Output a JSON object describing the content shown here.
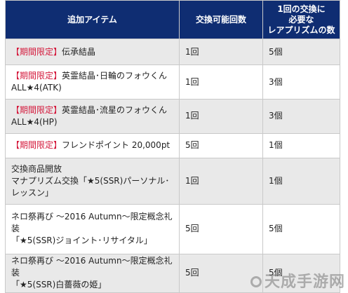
{
  "table": {
    "headers": [
      "追加アイテム",
      "交換可能回数",
      "1回の交換に\n必要な\nレアプリズムの数"
    ],
    "rows": [
      {
        "tag": "【期間限定】",
        "item": "伝承結晶",
        "times": "1回",
        "cost": "5個"
      },
      {
        "tag": "【期間限定】",
        "item": "英霊結晶･日輪のフォウくん\nALL★4(ATK)",
        "times": "1回",
        "cost": "3個"
      },
      {
        "tag": "【期間限定】",
        "item": "英霊結晶･流星のフォウくん\nALL★4(HP)",
        "times": "1回",
        "cost": "3個"
      },
      {
        "tag": "【期間限定】",
        "item": "フレンドポイント 20,000pt",
        "times": "5回",
        "cost": "1個"
      },
      {
        "tag": "",
        "item": "交換商品開放\nマナプリズム交換「★5(SSR)パーソナル･\nレッスン」",
        "times": "1回",
        "cost": "1個"
      },
      {
        "tag": "",
        "item": "ネロ祭再び 〜2016 Autumn〜限定概念礼\n装\n「★5(SSR)ジョイント･リサイタル」",
        "times": "5回",
        "cost": "5個"
      },
      {
        "tag": "",
        "item": "ネロ祭再び 〜2016 Autumn〜限定概念礼\n装\n「★5(SSR)白薔薇の姫」",
        "times": "5回",
        "cost": "5個"
      }
    ]
  },
  "watermark": "天成手游网",
  "colors": {
    "header_bg": "#0f2d72",
    "tag_red": "#d4183b",
    "alt_row": "#e9e9e9"
  }
}
